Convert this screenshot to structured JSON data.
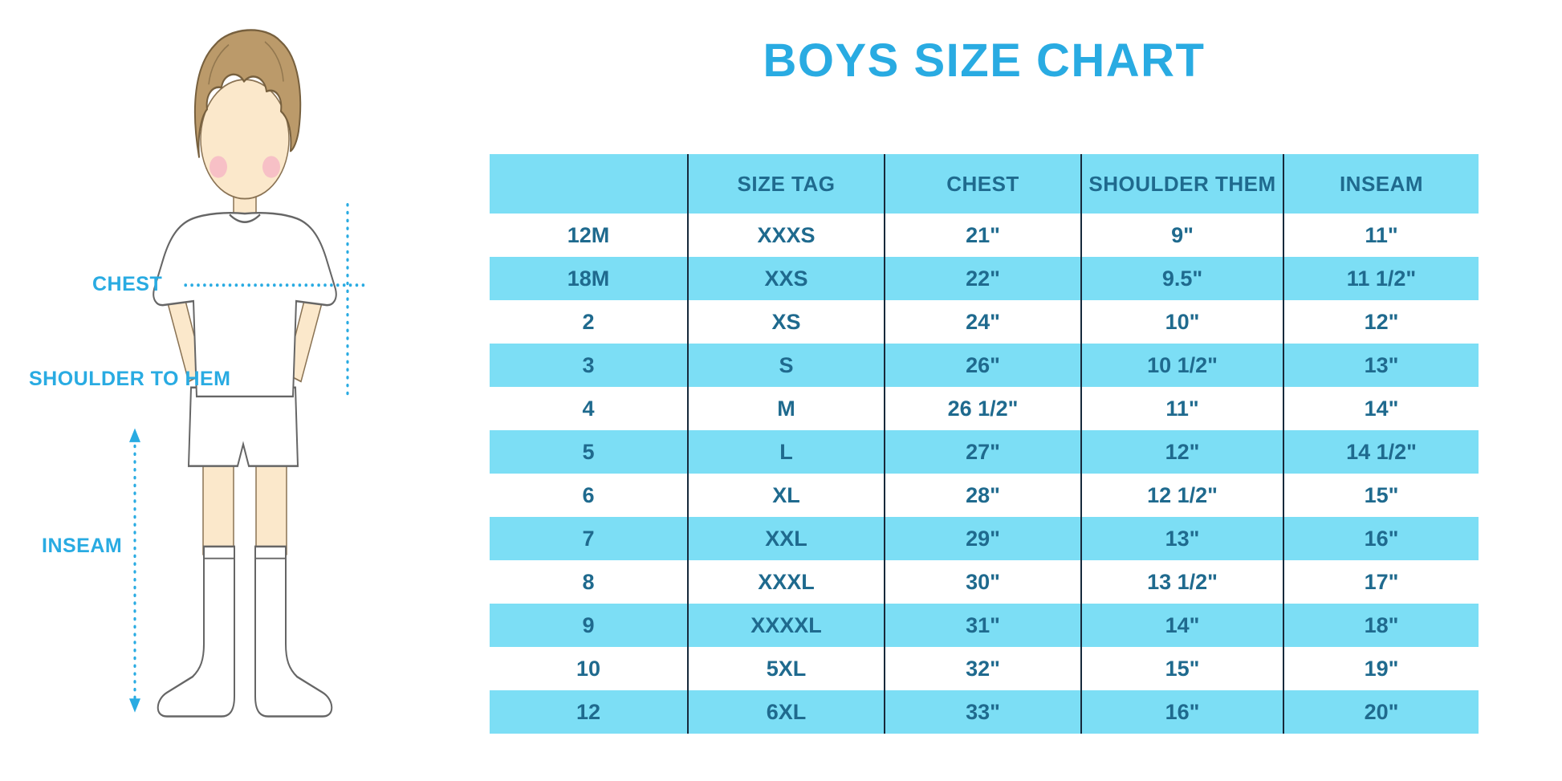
{
  "title": "BOYS SIZE CHART",
  "figure_labels": {
    "chest": "CHEST",
    "shoulder_to_hem": "SHOULDER TO HEM",
    "inseam": "INSEAM"
  },
  "colors": {
    "accent_cyan": "#29ABE2",
    "row_stripe_cyan": "#7CDEF5",
    "table_text": "#1F6A8E",
    "column_divider": "#16293B"
  },
  "chart_data": {
    "type": "table",
    "title": "BOYS SIZE CHART",
    "columns": [
      "",
      "SIZE TAG",
      "CHEST",
      "SHOULDER THEM",
      "INSEAM"
    ],
    "rows": [
      [
        "12M",
        "XXXS",
        "21\"",
        "9\"",
        "11\""
      ],
      [
        "18M",
        "XXS",
        "22\"",
        "9.5\"",
        "11 1/2\""
      ],
      [
        "2",
        "XS",
        "24\"",
        "10\"",
        "12\""
      ],
      [
        "3",
        "S",
        "26\"",
        "10 1/2\"",
        "13\""
      ],
      [
        "4",
        "M",
        "26 1/2\"",
        "11\"",
        "14\""
      ],
      [
        "5",
        "L",
        "27\"",
        "12\"",
        "14 1/2\""
      ],
      [
        "6",
        "XL",
        "28\"",
        "12 1/2\"",
        "15\""
      ],
      [
        "7",
        "XXL",
        "29\"",
        "13\"",
        "16\""
      ],
      [
        "8",
        "XXXL",
        "30\"",
        "13 1/2\"",
        "17\""
      ],
      [
        "9",
        "XXXXL",
        "31\"",
        "14\"",
        "18\""
      ],
      [
        "10",
        "5XL",
        "32\"",
        "15\"",
        "19\""
      ],
      [
        "12",
        "6XL",
        "33\"",
        "16\"",
        "20\""
      ]
    ]
  }
}
